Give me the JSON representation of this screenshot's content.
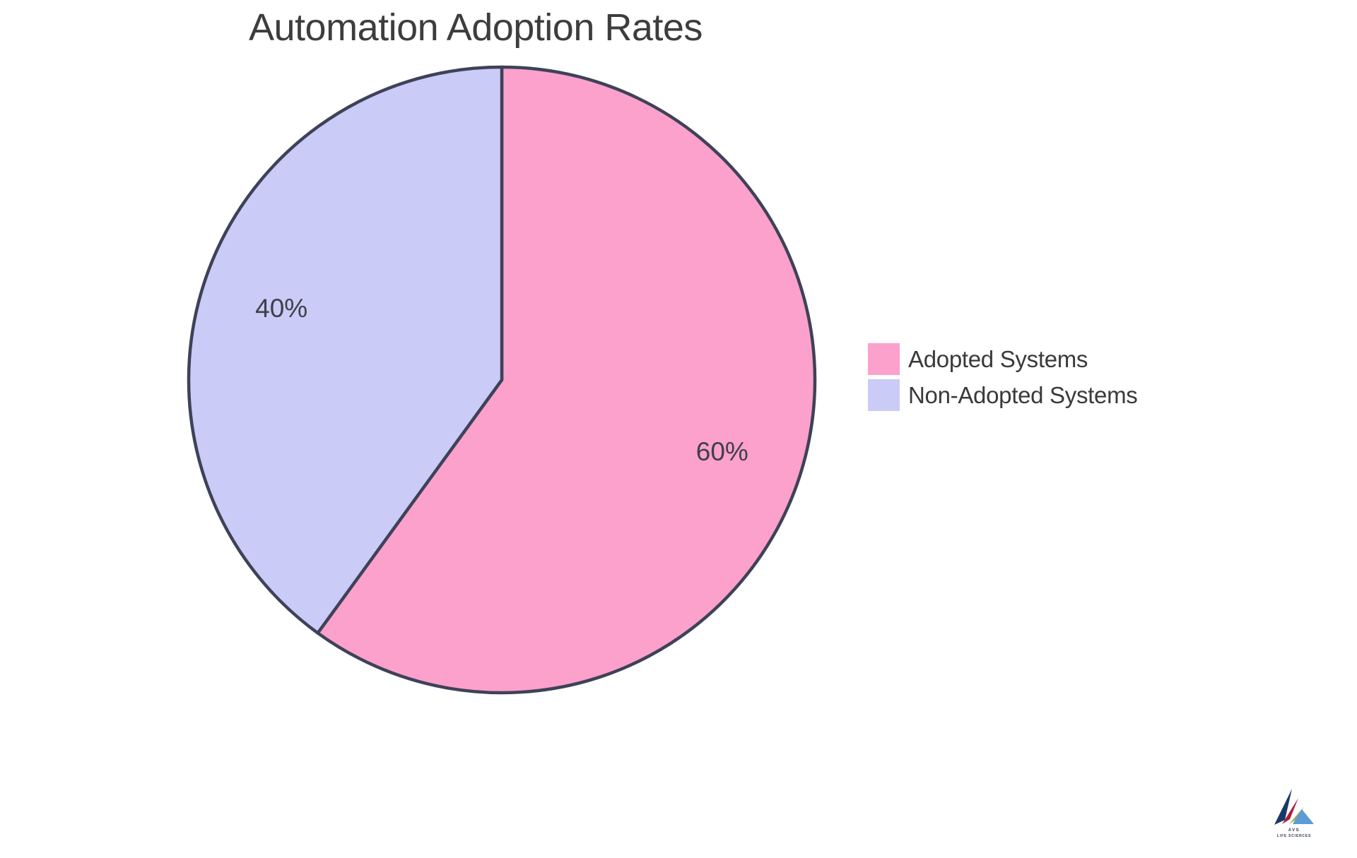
{
  "chart_data": {
    "type": "pie",
    "title": "Automation Adoption Rates",
    "slices": [
      {
        "label": "Adopted Systems",
        "value": 60,
        "pct_label": "60%",
        "color": "#FBA1CB"
      },
      {
        "label": "Non-Adopted Systems",
        "value": 40,
        "pct_label": "40%",
        "color": "#CBCBF7"
      }
    ],
    "start_angle": "top",
    "direction": "clockwise",
    "outline_color": "#3E4258",
    "outline_width": 4.5,
    "label_color": "#3E4049",
    "title_color": "#3D3D3D",
    "legend_position": "right-middle",
    "units": "percent"
  },
  "logo": {
    "line1": "AVS",
    "line2": "LIFE SCIENCES",
    "colors": {
      "navy": "#17386B",
      "crimson": "#AC1E3C",
      "green": "#93B04F",
      "blue": "#5C9BD5",
      "text": "#2F3B4C"
    }
  }
}
